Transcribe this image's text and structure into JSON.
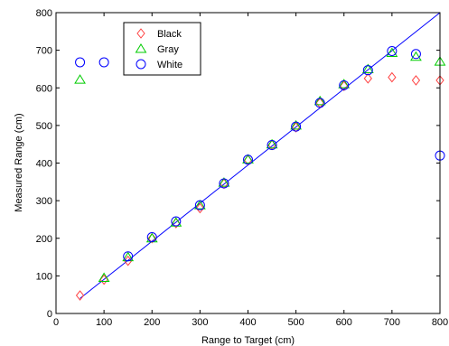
{
  "chart_data": {
    "type": "scatter",
    "xlabel": "Range to Target (cm)",
    "ylabel": "Measured Range (cm)",
    "xlim": [
      0,
      800
    ],
    "ylim": [
      0,
      800
    ],
    "xticks": [
      0,
      100,
      200,
      300,
      400,
      500,
      600,
      700,
      800
    ],
    "yticks": [
      0,
      100,
      200,
      300,
      400,
      500,
      600,
      700,
      800
    ],
    "grid": false,
    "legend_position": "top-left",
    "reference_line": {
      "x": [
        50,
        800
      ],
      "y": [
        40,
        800
      ],
      "color": "#0000ff"
    },
    "series": [
      {
        "name": "Black",
        "marker": "diamond",
        "color": "#ff4040",
        "x": [
          50,
          100,
          150,
          200,
          250,
          300,
          350,
          400,
          450,
          500,
          550,
          600,
          650,
          700,
          750,
          800
        ],
        "y": [
          48,
          90,
          140,
          200,
          240,
          280,
          345,
          408,
          448,
          495,
          560,
          605,
          625,
          628,
          620,
          620
        ]
      },
      {
        "name": "Gray",
        "marker": "triangle",
        "color": "#00cc00",
        "x": [
          50,
          100,
          150,
          200,
          250,
          300,
          350,
          400,
          450,
          500,
          550,
          600,
          650,
          700,
          750,
          800
        ],
        "y": [
          622,
          95,
          150,
          200,
          242,
          288,
          348,
          410,
          450,
          500,
          565,
          610,
          650,
          693,
          683,
          670
        ]
      },
      {
        "name": "White",
        "marker": "circle",
        "color": "#0000ff",
        "x": [
          50,
          100,
          150,
          200,
          250,
          300,
          350,
          400,
          450,
          500,
          550,
          600,
          650,
          700,
          750,
          800
        ],
        "y": [
          668,
          668,
          152,
          203,
          245,
          288,
          346,
          409,
          448,
          497,
          560,
          607,
          647,
          698,
          690,
          420
        ]
      }
    ]
  }
}
